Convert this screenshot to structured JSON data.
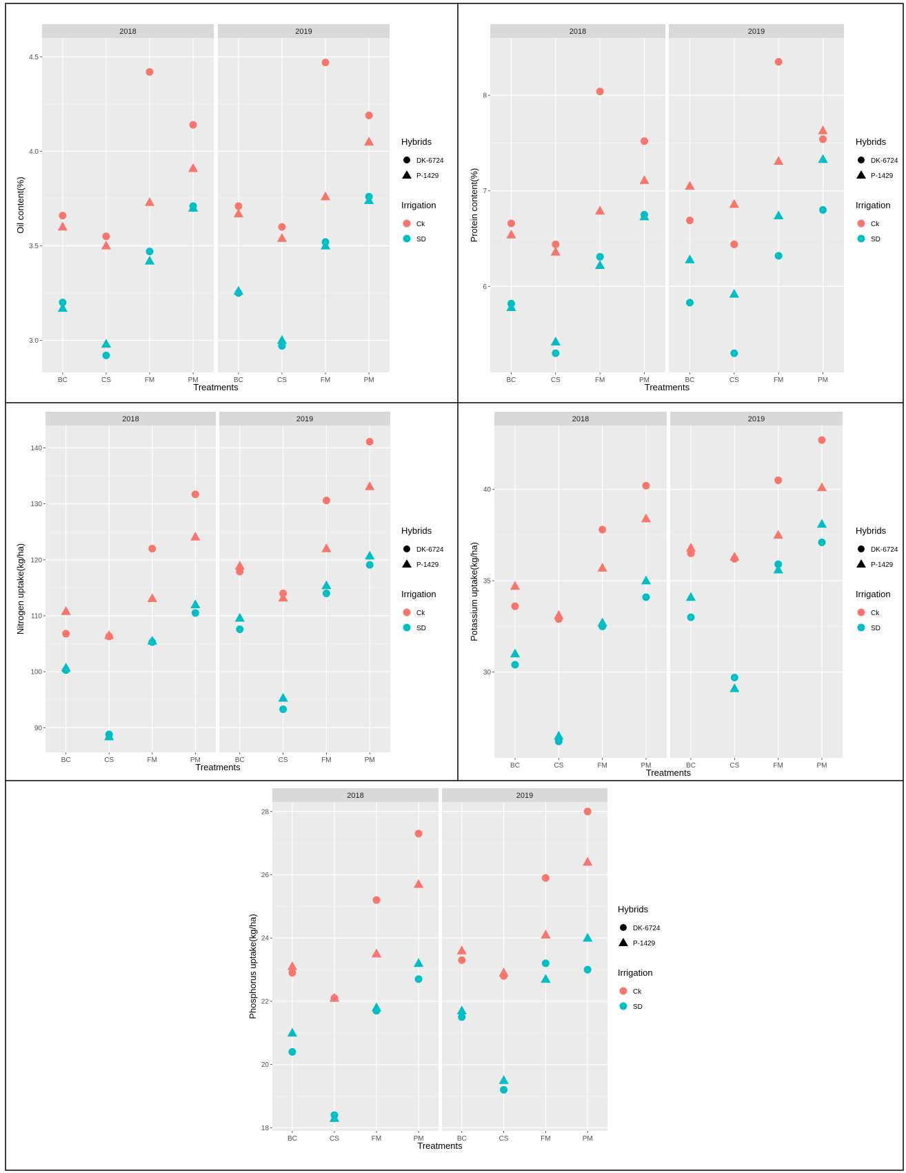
{
  "colors": {
    "Ck": "#F8766D",
    "SD": "#00BFC4",
    "panel_bg": "#EBEBEB",
    "strip_bg": "#D9D9D9",
    "grid": "#FFFFFF"
  },
  "legend": {
    "hybrids_title": "Hybrids",
    "hybrids": [
      {
        "label": "DK-6724",
        "shape": "circle"
      },
      {
        "label": "P-1429",
        "shape": "triangle"
      }
    ],
    "irrigation_title": "Irrigation",
    "irrigation": [
      {
        "label": "Ck",
        "color_key": "Ck"
      },
      {
        "label": "SD",
        "color_key": "SD"
      }
    ]
  },
  "chart_data": [
    {
      "type": "scatter",
      "facets": [
        "2018",
        "2019"
      ],
      "categories": [
        "BC",
        "CS",
        "FM",
        "PM"
      ],
      "xlabel": "Treatments",
      "ylabel": "Oil content(%)",
      "ylim": [
        2.83,
        4.6
      ],
      "yticks": [
        3.0,
        3.5,
        4.0,
        4.5
      ],
      "ytick_labels": [
        "3.0",
        "3.5",
        "4.0",
        "4.5"
      ],
      "series": [
        {
          "hybrid": "DK-6724",
          "irrigation": "Ck",
          "values": {
            "2018": [
              3.66,
              3.55,
              4.42,
              4.14
            ],
            "2019": [
              3.71,
              3.6,
              4.47,
              4.19
            ]
          }
        },
        {
          "hybrid": "P-1429",
          "irrigation": "Ck",
          "values": {
            "2018": [
              3.6,
              3.5,
              3.73,
              3.91
            ],
            "2019": [
              3.67,
              3.54,
              3.76,
              4.05
            ]
          }
        },
        {
          "hybrid": "DK-6724",
          "irrigation": "SD",
          "values": {
            "2018": [
              3.2,
              2.92,
              3.47,
              3.71
            ],
            "2019": [
              3.25,
              2.97,
              3.52,
              3.76
            ]
          }
        },
        {
          "hybrid": "P-1429",
          "irrigation": "SD",
          "values": {
            "2018": [
              3.17,
              2.98,
              3.42,
              3.7
            ],
            "2019": [
              3.26,
              3.0,
              3.5,
              3.74
            ]
          }
        }
      ]
    },
    {
      "type": "scatter",
      "facets": [
        "2018",
        "2019"
      ],
      "categories": [
        "BC",
        "CS",
        "FM",
        "PM"
      ],
      "xlabel": "Treatments",
      "ylabel": "Protein content(%)",
      "ylim": [
        5.1,
        8.6
      ],
      "yticks": [
        6,
        7,
        8
      ],
      "ytick_labels": [
        "6",
        "7",
        "8"
      ],
      "series": [
        {
          "hybrid": "DK-6724",
          "irrigation": "Ck",
          "values": {
            "2018": [
              6.66,
              6.44,
              8.04,
              7.52
            ],
            "2019": [
              6.69,
              6.44,
              8.35,
              7.54
            ]
          }
        },
        {
          "hybrid": "P-1429",
          "irrigation": "Ck",
          "values": {
            "2018": [
              6.54,
              6.36,
              6.79,
              7.11
            ],
            "2019": [
              7.05,
              6.86,
              7.31,
              7.63
            ]
          }
        },
        {
          "hybrid": "DK-6724",
          "irrigation": "SD",
          "values": {
            "2018": [
              5.82,
              5.3,
              6.31,
              6.75
            ],
            "2019": [
              5.83,
              5.3,
              6.32,
              6.8
            ]
          }
        },
        {
          "hybrid": "P-1429",
          "irrigation": "SD",
          "values": {
            "2018": [
              5.78,
              5.42,
              6.22,
              6.73
            ],
            "2019": [
              6.28,
              5.92,
              6.74,
              7.33
            ]
          }
        }
      ]
    },
    {
      "type": "scatter",
      "facets": [
        "2018",
        "2019"
      ],
      "categories": [
        "BC",
        "CS",
        "FM",
        "PM"
      ],
      "xlabel": "Treatments",
      "ylabel": "Nitrogen uptake(kg/ha)",
      "ylim": [
        85.6,
        144
      ],
      "yticks": [
        90,
        100,
        110,
        120,
        130,
        140
      ],
      "ytick_labels": [
        "90",
        "100",
        "110",
        "120",
        "130",
        "140"
      ],
      "series": [
        {
          "hybrid": "DK-6724",
          "irrigation": "Ck",
          "values": {
            "2018": [
              106.8,
              106.3,
              122.0,
              131.7
            ],
            "2019": [
              117.9,
              114.0,
              130.6,
              141.1
            ]
          }
        },
        {
          "hybrid": "P-1429",
          "irrigation": "Ck",
          "values": {
            "2018": [
              110.8,
              106.5,
              113.1,
              124.1
            ],
            "2019": [
              118.9,
              113.2,
              122.0,
              133.1
            ]
          }
        },
        {
          "hybrid": "DK-6724",
          "irrigation": "SD",
          "values": {
            "2018": [
              100.3,
              88.8,
              105.3,
              110.5
            ],
            "2019": [
              107.6,
              93.3,
              114.0,
              119.1
            ]
          }
        },
        {
          "hybrid": "P-1429",
          "irrigation": "SD",
          "values": {
            "2018": [
              100.7,
              88.4,
              105.5,
              112.0
            ],
            "2019": [
              109.6,
              95.3,
              115.4,
              120.7
            ]
          }
        }
      ]
    },
    {
      "type": "scatter",
      "facets": [
        "2018",
        "2019"
      ],
      "categories": [
        "BC",
        "CS",
        "FM",
        "PM"
      ],
      "xlabel": "Treatments",
      "ylabel": "Potassium uptake(kg/ha)",
      "ylim": [
        25.3,
        43.5
      ],
      "yticks": [
        30,
        35,
        40
      ],
      "ytick_labels": [
        "30",
        "35",
        "40"
      ],
      "series": [
        {
          "hybrid": "DK-6724",
          "irrigation": "Ck",
          "values": {
            "2018": [
              33.6,
              32.9,
              37.8,
              40.2
            ],
            "2019": [
              36.5,
              36.2,
              40.5,
              42.7
            ]
          }
        },
        {
          "hybrid": "P-1429",
          "irrigation": "Ck",
          "values": {
            "2018": [
              34.7,
              33.1,
              35.7,
              38.4
            ],
            "2019": [
              36.8,
              36.3,
              37.5,
              40.1
            ]
          }
        },
        {
          "hybrid": "DK-6724",
          "irrigation": "SD",
          "values": {
            "2018": [
              30.4,
              26.2,
              32.5,
              34.1
            ],
            "2019": [
              33.0,
              29.7,
              35.9,
              37.1
            ]
          }
        },
        {
          "hybrid": "P-1429",
          "irrigation": "SD",
          "values": {
            "2018": [
              31.0,
              26.5,
              32.7,
              35.0
            ],
            "2019": [
              34.1,
              29.1,
              35.6,
              38.1
            ]
          }
        }
      ]
    },
    {
      "type": "scatter",
      "facets": [
        "2018",
        "2019"
      ],
      "categories": [
        "BC",
        "CS",
        "FM",
        "PM"
      ],
      "xlabel": "Treatments",
      "ylabel": "Phosphorus uptake(kg/ha)",
      "ylim": [
        17.9,
        28.3
      ],
      "yticks": [
        18,
        20,
        22,
        24,
        26,
        28
      ],
      "ytick_labels": [
        "18",
        "20",
        "22",
        "24",
        "26",
        "28"
      ],
      "series": [
        {
          "hybrid": "DK-6724",
          "irrigation": "Ck",
          "values": {
            "2018": [
              22.9,
              22.1,
              25.2,
              27.3
            ],
            "2019": [
              23.3,
              22.8,
              25.9,
              28.0
            ]
          }
        },
        {
          "hybrid": "P-1429",
          "irrigation": "Ck",
          "values": {
            "2018": [
              23.1,
              22.1,
              23.5,
              25.7
            ],
            "2019": [
              23.6,
              22.9,
              24.1,
              26.4
            ]
          }
        },
        {
          "hybrid": "DK-6724",
          "irrigation": "SD",
          "values": {
            "2018": [
              20.4,
              18.4,
              21.7,
              22.7
            ],
            "2019": [
              21.5,
              19.2,
              23.2,
              23.0
            ]
          }
        },
        {
          "hybrid": "P-1429",
          "irrigation": "SD",
          "values": {
            "2018": [
              21.0,
              18.3,
              21.8,
              23.2
            ],
            "2019": [
              21.7,
              19.5,
              22.7,
              24.0
            ]
          }
        }
      ]
    }
  ]
}
